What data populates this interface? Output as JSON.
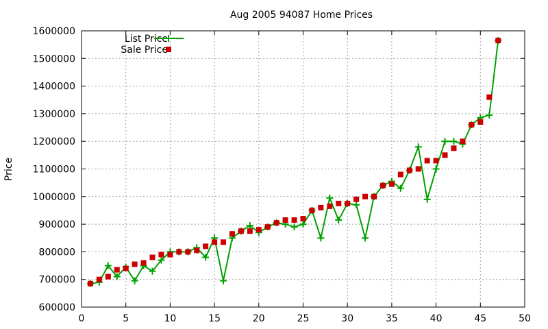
{
  "chart_data": {
    "type": "line",
    "title": "Aug 2005 94087 Home Prices",
    "xlabel": "",
    "ylabel": "Price",
    "xlim": [
      0,
      50
    ],
    "ylim": [
      600000,
      1600000
    ],
    "xticks": [
      0,
      5,
      10,
      15,
      20,
      25,
      30,
      35,
      40,
      45,
      50
    ],
    "yticks": [
      600000,
      700000,
      800000,
      900000,
      1000000,
      1100000,
      1200000,
      1300000,
      1400000,
      1500000,
      1600000
    ],
    "grid": true,
    "legend": "top-left",
    "x": [
      1,
      2,
      3,
      4,
      5,
      6,
      7,
      8,
      9,
      10,
      11,
      12,
      13,
      14,
      15,
      16,
      17,
      18,
      19,
      20,
      21,
      22,
      23,
      24,
      25,
      26,
      27,
      28,
      29,
      30,
      31,
      32,
      33,
      34,
      35,
      36,
      37,
      38,
      39,
      40,
      41,
      42,
      43,
      44,
      45,
      46,
      47
    ],
    "series": [
      {
        "name": "List Price",
        "style": "line-cross",
        "color": "#00a000",
        "values": [
          685000,
          690000,
          750000,
          710000,
          745000,
          695000,
          750000,
          730000,
          770000,
          800000,
          800000,
          800000,
          815000,
          780000,
          850000,
          695000,
          850000,
          875000,
          895000,
          870000,
          890000,
          905000,
          900000,
          890000,
          900000,
          950000,
          850000,
          995000,
          915000,
          975000,
          970000,
          850000,
          1000000,
          1040000,
          1055000,
          1030000,
          1095000,
          1180000,
          990000,
          1100000,
          1200000,
          1200000,
          1190000,
          1260000,
          1285000,
          1295000,
          1565000
        ]
      },
      {
        "name": "Sale Price",
        "style": "square",
        "color": "#cc0000",
        "values": [
          685000,
          700000,
          710000,
          735000,
          740000,
          755000,
          760000,
          780000,
          790000,
          790000,
          800000,
          800000,
          805000,
          820000,
          835000,
          835000,
          865000,
          875000,
          875000,
          880000,
          890000,
          905000,
          915000,
          915000,
          920000,
          950000,
          960000,
          965000,
          975000,
          975000,
          990000,
          1000000,
          1000000,
          1040000,
          1045000,
          1080000,
          1095000,
          1100000,
          1130000,
          1130000,
          1150000,
          1175000,
          1200000,
          1260000,
          1270000,
          1360000,
          1565000
        ]
      }
    ]
  }
}
